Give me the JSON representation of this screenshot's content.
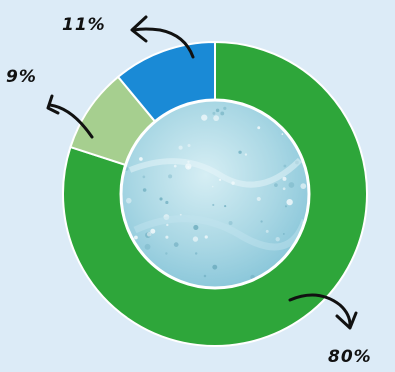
{
  "chart_data": {
    "type": "pie",
    "categories": [
      "green",
      "light-green",
      "blue"
    ],
    "values": [
      80,
      9,
      11
    ],
    "data_labels": [
      "80%",
      "9%",
      "11%"
    ],
    "colors": [
      "#2ea63a",
      "#a6cf8f",
      "#1a8ad6"
    ],
    "center_image": "water-texture"
  },
  "background_color": "#dcebf7"
}
